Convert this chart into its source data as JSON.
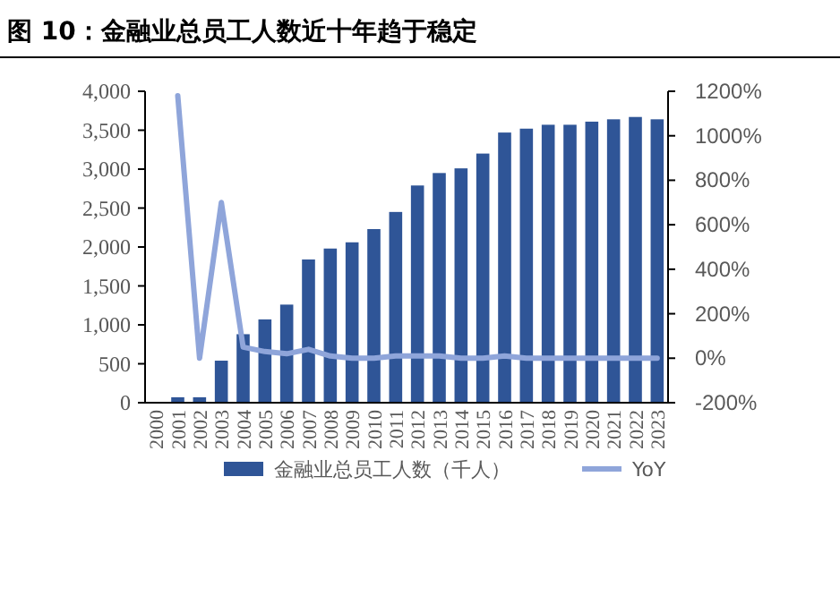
{
  "chart_data": {
    "type": "bar",
    "title": "图 10：金融业总员工人数近十年趋于稳定",
    "categories": [
      "2000",
      "2001",
      "2002",
      "2003",
      "2004",
      "2005",
      "2006",
      "2007",
      "2008",
      "2009",
      "2010",
      "2011",
      "2012",
      "2013",
      "2014",
      "2015",
      "2016",
      "2017",
      "2018",
      "2019",
      "2020",
      "2021",
      "2022",
      "2023"
    ],
    "series": [
      {
        "name": "金融业总员工人数（千人）",
        "color": "#2f5597",
        "values": [
          0,
          70,
          70,
          540,
          880,
          1070,
          1260,
          1840,
          1980,
          2060,
          2230,
          2450,
          2790,
          2950,
          3010,
          3200,
          3470,
          3520,
          3570,
          3570,
          3610,
          3640,
          3670,
          3640
        ]
      },
      {
        "name": "YoY",
        "type": "line",
        "axis": "y2",
        "color": "#8fa5da",
        "values": [
          null,
          1180,
          0,
          700,
          50,
          30,
          20,
          40,
          10,
          0,
          0,
          10,
          10,
          10,
          0,
          0,
          10,
          0,
          0,
          0,
          0,
          0,
          0,
          0
        ]
      }
    ],
    "ylim": [
      0,
      4000
    ],
    "yticks": [
      {
        "value": 0,
        "label": "0"
      },
      {
        "value": 500,
        "label": "500"
      },
      {
        "value": 1000,
        "label": "1,000"
      },
      {
        "value": 1500,
        "label": "1,500"
      },
      {
        "value": 2000,
        "label": "2,000"
      },
      {
        "value": 2500,
        "label": "2,500"
      },
      {
        "value": 3000,
        "label": "3,000"
      },
      {
        "value": 3500,
        "label": "3,500"
      },
      {
        "value": 4000,
        "label": "4,000"
      }
    ],
    "y2lim": [
      -200,
      1200
    ],
    "y2ticks": [
      {
        "value": -200,
        "label": "-200%"
      },
      {
        "value": 0,
        "label": "0%"
      },
      {
        "value": 200,
        "label": "200%"
      },
      {
        "value": 400,
        "label": "400%"
      },
      {
        "value": 600,
        "label": "600%"
      },
      {
        "value": 800,
        "label": "800%"
      },
      {
        "value": 1000,
        "label": "1000%"
      },
      {
        "value": 1200,
        "label": "1200%"
      }
    ],
    "grid": false,
    "legend": "bottom"
  }
}
